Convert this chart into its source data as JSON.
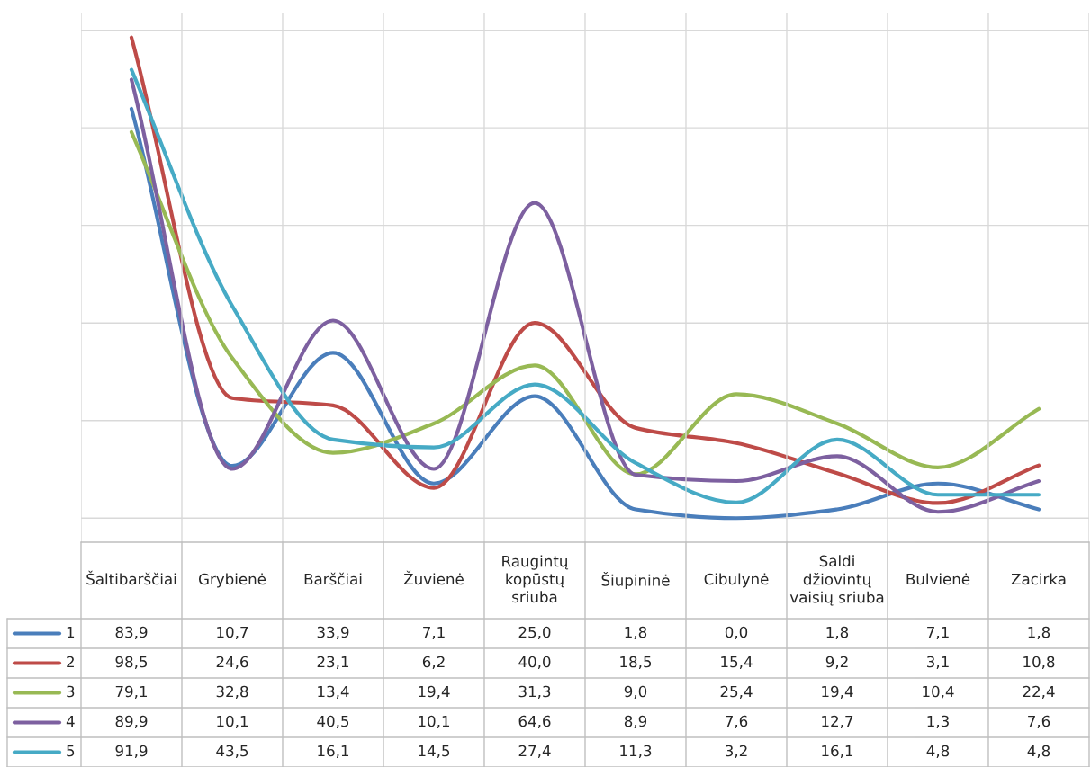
{
  "chart_data": {
    "type": "line",
    "categories": [
      "Šaltibarščiai",
      "Grybienė",
      "Barščiai",
      "Žuvienė",
      "Raugintų kopūstų sriuba",
      "Šiupininė",
      "Cibulynė",
      "Saldi džiovintų vaisių sriuba",
      "Bulvienė",
      "Zacirka"
    ],
    "grid": true,
    "legend": "left",
    "series": [
      {
        "name": "1",
        "color": "#4a7ebb",
        "values": [
          83.9,
          10.7,
          33.9,
          7.1,
          25.0,
          1.8,
          0.0,
          1.8,
          7.1,
          1.8
        ],
        "value_labels": [
          "83,9",
          "10,7",
          "33,9",
          "7,1",
          "25,0",
          "1,8",
          "0,0",
          "1,8",
          "7,1",
          "1,8"
        ]
      },
      {
        "name": "2",
        "color": "#be4b48",
        "values": [
          98.5,
          24.6,
          23.1,
          6.2,
          40.0,
          18.5,
          15.4,
          9.2,
          3.1,
          10.8
        ],
        "value_labels": [
          "98,5",
          "24,6",
          "23,1",
          "6,2",
          "40,0",
          "18,5",
          "15,4",
          "9,2",
          "3,1",
          "10,8"
        ]
      },
      {
        "name": "3",
        "color": "#98b954",
        "values": [
          79.1,
          32.8,
          13.4,
          19.4,
          31.3,
          9.0,
          25.4,
          19.4,
          10.4,
          22.4
        ],
        "value_labels": [
          "79,1",
          "32,8",
          "13,4",
          "19,4",
          "31,3",
          "9,0",
          "25,4",
          "19,4",
          "10,4",
          "22,4"
        ]
      },
      {
        "name": "4",
        "color": "#7d60a0",
        "values": [
          89.9,
          10.1,
          40.5,
          10.1,
          64.6,
          8.9,
          7.6,
          12.7,
          1.3,
          7.6
        ],
        "value_labels": [
          "89,9",
          "10,1",
          "40,5",
          "10,1",
          "64,6",
          "8,9",
          "7,6",
          "12,7",
          "1,3",
          "7,6"
        ]
      },
      {
        "name": "5",
        "color": "#46aac5",
        "values": [
          91.9,
          43.5,
          16.1,
          14.5,
          27.4,
          11.3,
          3.2,
          16.1,
          4.8,
          4.8
        ],
        "value_labels": [
          "91,9",
          "43,5",
          "16,1",
          "14,5",
          "27,4",
          "11,3",
          "3,2",
          "16,1",
          "4,8",
          "4,8"
        ]
      }
    ]
  }
}
